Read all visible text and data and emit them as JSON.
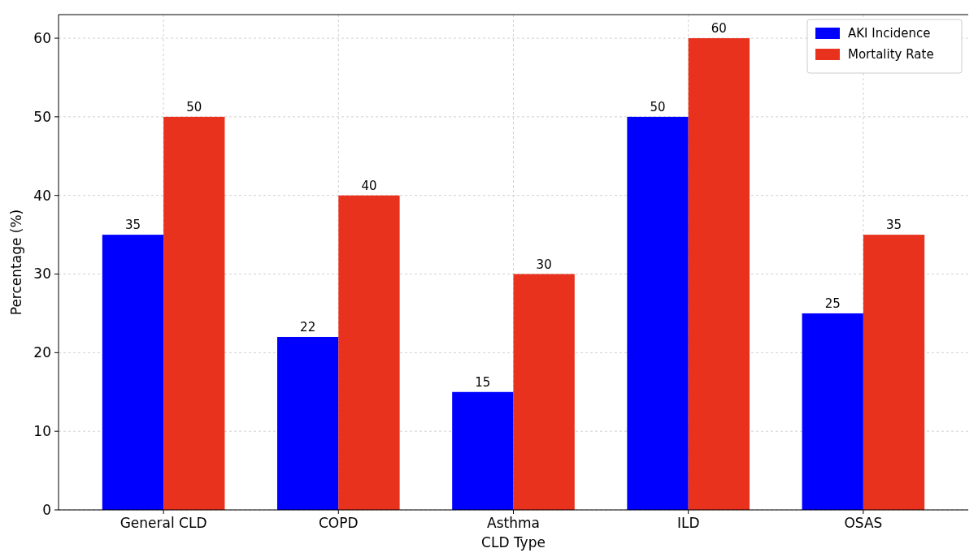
{
  "chart_data": {
    "type": "bar",
    "xlabel": "CLD Type",
    "ylabel": "Percentage (%)",
    "categories": [
      "General CLD",
      "COPD",
      "Asthma",
      "ILD",
      "OSAS"
    ],
    "series": [
      {
        "name": "AKI Incidence",
        "color": "#0000ff",
        "values": [
          35,
          22,
          15,
          50,
          25
        ]
      },
      {
        "name": "Mortality Rate",
        "color": "#e8321e",
        "values": [
          50,
          40,
          30,
          60,
          35
        ]
      }
    ],
    "ylim": [
      0,
      63
    ],
    "yticks": [
      0,
      10,
      20,
      30,
      40,
      50,
      60
    ],
    "grid": true,
    "legend": "top right",
    "data_labels": true
  }
}
